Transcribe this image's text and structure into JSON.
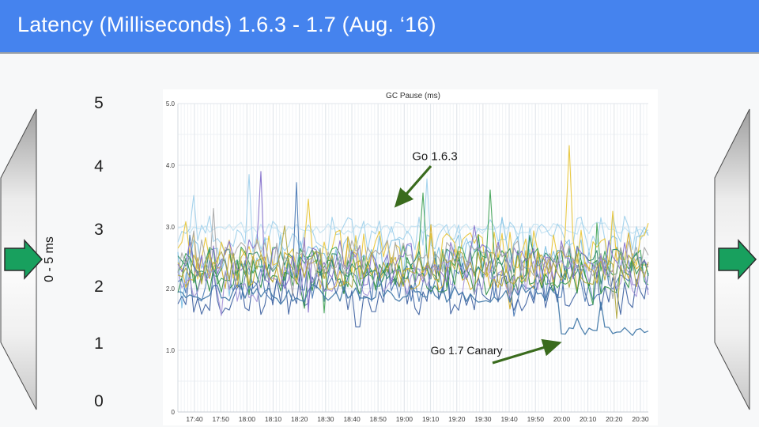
{
  "slide": {
    "title": "Latency (Milliseconds) 1.6.3 - 1.7 (Aug. ‘16)",
    "title_bar_color": "#4583ee"
  },
  "left_scale": {
    "unit_label": "0 - 5 ms",
    "ticks": [
      "5",
      "4",
      "3",
      "2",
      "1",
      "0"
    ],
    "arrow_color": "#18a05e"
  },
  "chart_data": {
    "type": "line",
    "title": "GC Pause (ms)",
    "xlabel": "",
    "ylabel": "",
    "ylim": [
      0,
      5
    ],
    "grid": true,
    "legend": "none",
    "y_ticks": [
      {
        "v": 5,
        "label": "5.0"
      },
      {
        "v": 4,
        "label": "4.0"
      },
      {
        "v": 3,
        "label": "3.0"
      },
      {
        "v": 2,
        "label": "2.0"
      },
      {
        "v": 1,
        "label": "1.0"
      },
      {
        "v": 0,
        "label": "0"
      }
    ],
    "x_ticks": [
      "17:40",
      "17:50",
      "18:00",
      "18:10",
      "18:20",
      "18:30",
      "18:40",
      "18:50",
      "19:00",
      "19:10",
      "19:20",
      "19:30",
      "19:40",
      "19:50",
      "20:00",
      "20:10",
      "20:20",
      "20:30"
    ],
    "points_per_series": 120,
    "annotation_arrow_color": "#3a6b1d",
    "annotations": [
      {
        "text": "Go 1.6.3",
        "arrow_from": [
          339,
          97
        ],
        "arrow_to": [
          296,
          146
        ]
      },
      {
        "text": "Go 1.7 Canary",
        "arrow_from": [
          417,
          346
        ],
        "arrow_to": [
          500,
          321
        ]
      }
    ],
    "series": [
      {
        "name": "pale-cyan",
        "color": "#c3e3f2",
        "base": 2.98,
        "amp": 0.1,
        "seed": 11,
        "width": 1.2
      },
      {
        "name": "sky-high",
        "color": "#9fd0ec",
        "base": 2.88,
        "amp": 0.3,
        "seed": 12,
        "spikes": [
          {
            "i": 18,
            "v": 3.85
          },
          {
            "i": 63,
            "v": 3.78
          }
        ]
      },
      {
        "name": "sky",
        "color": "#7fc0e4",
        "base": 2.55,
        "amp": 0.33,
        "seed": 13
      },
      {
        "name": "steel-blue",
        "color": "#4a7ab5",
        "base": 2.15,
        "amp": 0.36,
        "seed": 14,
        "spikes": [
          {
            "i": 30,
            "v": 3.72
          }
        ]
      },
      {
        "name": "navy",
        "color": "#3c5fa0",
        "base": 1.95,
        "amp": 0.38,
        "seed": 15
      },
      {
        "name": "yellow",
        "color": "#e8c636",
        "base": 2.55,
        "amp": 0.4,
        "seed": 16,
        "spikes": [
          {
            "i": 33,
            "v": 3.45
          },
          {
            "i": 99,
            "v": 4.32
          }
        ]
      },
      {
        "name": "gold",
        "color": "#d4ae2a",
        "base": 2.3,
        "amp": 0.34,
        "seed": 17
      },
      {
        "name": "green",
        "color": "#41a356",
        "base": 2.35,
        "amp": 0.36,
        "seed": 18,
        "spikes": [
          {
            "i": 62,
            "v": 3.55
          },
          {
            "i": 79,
            "v": 3.6
          }
        ]
      },
      {
        "name": "forest",
        "color": "#2f8e47",
        "base": 2.2,
        "amp": 0.3,
        "seed": 19
      },
      {
        "name": "teal",
        "color": "#2f8a6c",
        "base": 2.4,
        "amp": 0.26,
        "seed": 20
      },
      {
        "name": "purple",
        "color": "#8470cb",
        "base": 2.45,
        "amp": 0.4,
        "seed": 21,
        "spikes": [
          {
            "i": 21,
            "v": 3.9
          }
        ]
      },
      {
        "name": "violet",
        "color": "#a593d8",
        "base": 2.2,
        "amp": 0.34,
        "seed": 22
      },
      {
        "name": "gray",
        "color": "#a8a8a8",
        "base": 2.5,
        "amp": 0.3,
        "seed": 23,
        "spikes": [
          {
            "i": 9,
            "v": 3.3
          }
        ]
      },
      {
        "name": "olive",
        "color": "#b0a63e",
        "base": 2.32,
        "amp": 0.3,
        "seed": 24
      },
      {
        "name": "go-1.7-canary",
        "color": "#4178a8",
        "base": 1.92,
        "amp": 0.15,
        "seed": 25,
        "width": 1.3,
        "drop": {
          "index": 97,
          "base": 1.32,
          "amp": 0.07,
          "spikes": [
            {
              "i": 107,
              "v": 1.78
            },
            {
              "i": 101,
              "v": 1.52
            }
          ]
        }
      }
    ]
  }
}
